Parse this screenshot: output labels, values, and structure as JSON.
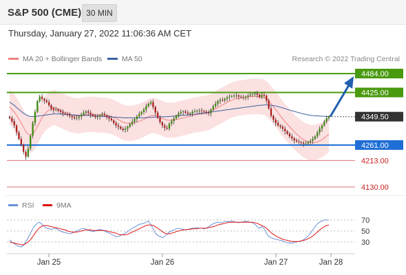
{
  "header": {
    "symbol": "S&P 500 (CME)",
    "interval": "30 MIN"
  },
  "datetime": "Thursday, January 27, 2022 11:06:36 AM CET",
  "legend": {
    "ma20_label": "MA 20 + Bollinger Bands",
    "ma20_color": "#f08080",
    "ma50_label": "MA 50",
    "ma50_color": "#3a5fa0",
    "credit": "Research © 2022 Trading Central"
  },
  "rsi_legend": {
    "rsi_label": "RSI",
    "rsi_color": "#6a8fd8",
    "ma9_label": "9MA",
    "ma9_color": "#dd1111"
  },
  "chart_data": {
    "type": "candlestick",
    "price_levels": [
      {
        "label": "4484.00",
        "value": 4484.0,
        "kind": "resistance",
        "color": "#4a9a10"
      },
      {
        "label": "4425.00",
        "value": 4425.0,
        "kind": "resistance",
        "color": "#4a9a10"
      },
      {
        "label": "4349.50",
        "value": 4349.5,
        "kind": "last",
        "color": "#333333"
      },
      {
        "label": "4261.00",
        "value": 4261.0,
        "kind": "pivot",
        "color": "#1f6fd6"
      },
      {
        "label": "4213.00",
        "value": 4213.0,
        "kind": "support",
        "color": "#e07070"
      },
      {
        "label": "4130.00",
        "value": 4130.0,
        "kind": "support",
        "color": "#e07070"
      }
    ],
    "x_ticks": [
      "Jan 25",
      "Jan 26",
      "Jan 27",
      "Jan 28"
    ],
    "rsi_levels": [
      "70",
      "50",
      "30"
    ],
    "close": [
      4345,
      4335,
      4322,
      4300,
      4280,
      4262,
      4240,
      4225,
      4250,
      4290,
      4330,
      4365,
      4398,
      4412,
      4405,
      4400,
      4395,
      4385,
      4375,
      4370,
      4372,
      4368,
      4364,
      4360,
      4358,
      4355,
      4352,
      4348,
      4344,
      4346,
      4350,
      4356,
      4362,
      4366,
      4362,
      4356,
      4352,
      4348,
      4350,
      4354,
      4358,
      4354,
      4348,
      4344,
      4338,
      4330,
      4322,
      4318,
      4312,
      4308,
      4312,
      4318,
      4326,
      4334,
      4342,
      4350,
      4358,
      4364,
      4372,
      4382,
      4390,
      4395,
      4380,
      4362,
      4346,
      4332,
      4322,
      4315,
      4312,
      4328,
      4336,
      4344,
      4352,
      4360,
      4364,
      4366,
      4362,
      4358,
      4360,
      4365,
      4366,
      4368,
      4369,
      4367,
      4365,
      4362,
      4360,
      4372,
      4382,
      4390,
      4398,
      4402,
      4400,
      4405,
      4410,
      4412,
      4414,
      4415,
      4416,
      4412,
      4410,
      4408,
      4412,
      4415,
      4418,
      4420,
      4422,
      4418,
      4410,
      4418,
      4415,
      4400,
      4375,
      4352,
      4340,
      4330,
      4322,
      4318,
      4312,
      4304,
      4296,
      4288,
      4282,
      4276,
      4272,
      4270,
      4268,
      4265,
      4266,
      4270,
      4274,
      4280,
      4288,
      4300,
      4312,
      4322,
      4334,
      4345,
      4350
    ],
    "ma20": [
      4380,
      4372,
      4364,
      4354,
      4342,
      4330,
      4316,
      4303,
      4295,
      4292,
      4296,
      4305,
      4318,
      4332,
      4346,
      4356,
      4364,
      4370,
      4374,
      4378,
      4376,
      4373,
      4370,
      4366,
      4363,
      4360,
      4357,
      4355,
      4353,
      4352,
      4352,
      4353,
      4355,
      4356,
      4357,
      4357,
      4357,
      4356,
      4355,
      4355,
      4354,
      4354,
      4353,
      4352,
      4350,
      4347,
      4344,
      4340,
      4336,
      4332,
      4330,
      4329,
      4328,
      4329,
      4331,
      4333,
      4335,
      4338,
      4341,
      4345,
      4349,
      4352,
      4353,
      4352,
      4350,
      4347,
      4344,
      4341,
      4339,
      4338,
      4338,
      4339,
      4340,
      4342,
      4344,
      4346,
      4347,
      4349,
      4351,
      4353,
      4355,
      4356,
      4357,
      4358,
      4359,
      4361,
      4363,
      4366,
      4370,
      4374,
      4378,
      4382,
      4386,
      4390,
      4394,
      4398,
      4401,
      4404,
      4406,
      4407,
      4408,
      4409,
      4410,
      4411,
      4412,
      4412,
      4413,
      4413,
      4412,
      4411,
      4409,
      4405,
      4398,
      4390,
      4381,
      4372,
      4362,
      4352,
      4343,
      4334,
      4326,
      4318,
      4310,
      4302,
      4295,
      4289,
      4283,
      4278,
      4274,
      4271,
      4269,
      4268,
      4269,
      4271,
      4274,
      4278,
      4283,
      4289,
      4295
    ],
    "ma50": [
      4395,
      4390,
      4385,
      4378,
      4372,
      4366,
      4360,
      4356,
      4352,
      4350,
      4350,
      4350,
      4351,
      4352,
      4353,
      4354,
      4355,
      4356,
      4357,
      4358,
      4358,
      4358,
      4358,
      4357,
      4357,
      4356,
      4356,
      4355,
      4355,
      4354,
      4354,
      4354,
      4353,
      4353,
      4353,
      4352,
      4352,
      4352,
      4351,
      4351,
      4350,
      4350,
      4350,
      4349,
      4349,
      4348,
      4348,
      4347,
      4347,
      4346,
      4346,
      4346,
      4346,
      4346,
      4346,
      4346,
      4346,
      4346,
      4346,
      4347,
      4347,
      4347,
      4348,
      4348,
      4348,
      4349,
      4349,
      4349,
      4350,
      4350,
      4351,
      4351,
      4352,
      4352,
      4353,
      4354,
      4354,
      4355,
      4356,
      4357,
      4357,
      4358,
      4359,
      4360,
      4361,
      4362,
      4363,
      4364,
      4365,
      4366,
      4367,
      4368,
      4369,
      4370,
      4371,
      4372,
      4373,
      4374,
      4375,
      4376,
      4377,
      4378,
      4379,
      4380,
      4381,
      4382,
      4383,
      4384,
      4385,
      4385,
      4386,
      4386,
      4386,
      4385,
      4384,
      4383,
      4381,
      4379,
      4377,
      4375,
      4372,
      4370,
      4368,
      4366,
      4364,
      4362,
      4360,
      4358,
      4357,
      4355,
      4354,
      4353,
      4352,
      4352,
      4351,
      4351,
      4351,
      4350,
      4350
    ],
    "bb_width": 55,
    "rsi": [
      34,
      30,
      27,
      24,
      22,
      21,
      24,
      30,
      38,
      46,
      54,
      60,
      64,
      66,
      62,
      58,
      55,
      54,
      53,
      54,
      55,
      52,
      50,
      48,
      47,
      46,
      45,
      46,
      48,
      50,
      52,
      54,
      55,
      53,
      51,
      50,
      49,
      50,
      52,
      53,
      52,
      50,
      48,
      46,
      44,
      42,
      40,
      40,
      42,
      44,
      46,
      49,
      52,
      55,
      57,
      60,
      62,
      63,
      64,
      66,
      68,
      62,
      54,
      46,
      42,
      40,
      38,
      40,
      44,
      48,
      50,
      52,
      54,
      55,
      54,
      53,
      52,
      53,
      54,
      55,
      55,
      56,
      55,
      55,
      54,
      55,
      58,
      61,
      63,
      65,
      66,
      65,
      66,
      67,
      67,
      67,
      68,
      67,
      66,
      65,
      66,
      67,
      68,
      67,
      66,
      65,
      62,
      58,
      55,
      58,
      54,
      46,
      40,
      38,
      36,
      35,
      34,
      33,
      32,
      30,
      29,
      28,
      28,
      29,
      30,
      31,
      32,
      34,
      37,
      41,
      46,
      52,
      58,
      63,
      66,
      68,
      70,
      70,
      70
    ],
    "rsi_ma9": [
      30,
      29,
      28,
      27,
      26,
      25,
      25,
      27,
      30,
      34,
      40,
      46,
      52,
      56,
      59,
      60,
      60,
      59,
      58,
      57,
      56,
      55,
      54,
      53,
      52,
      50,
      49,
      48,
      48,
      48,
      49,
      50,
      51,
      52,
      52,
      52,
      51,
      51,
      51,
      51,
      51,
      51,
      50,
      49,
      48,
      47,
      46,
      44,
      43,
      43,
      43,
      44,
      46,
      48,
      50,
      52,
      54,
      56,
      58,
      60,
      61,
      61,
      60,
      58,
      55,
      52,
      49,
      46,
      45,
      45,
      46,
      47,
      49,
      50,
      51,
      52,
      52,
      53,
      53,
      54,
      54,
      54,
      55,
      55,
      55,
      55,
      56,
      57,
      58,
      59,
      61,
      62,
      63,
      64,
      65,
      66,
      66,
      66,
      66,
      66,
      66,
      66,
      66,
      66,
      66,
      66,
      65,
      64,
      62,
      60,
      58,
      55,
      51,
      47,
      44,
      41,
      39,
      37,
      35,
      34,
      33,
      32,
      31,
      31,
      31,
      31,
      32,
      33,
      34,
      36,
      38,
      41,
      44,
      48,
      52,
      55,
      58,
      60,
      61
    ]
  }
}
